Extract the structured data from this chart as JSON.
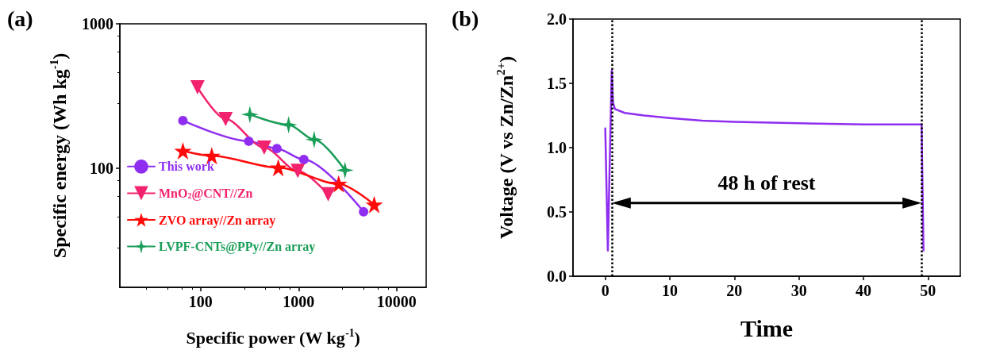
{
  "chart_data": [
    {
      "type": "line",
      "title": "(a)",
      "xlabel": "Specific power (W kg$^{-1}$)",
      "ylabel": "Specific energy (Wh kg$^{-1}$)",
      "log": "xy",
      "xlim": [
        15,
        20000
      ],
      "ylim": [
        15,
        1000
      ],
      "xticks": [
        100,
        1000,
        10000
      ],
      "yticks": [
        100,
        1000
      ],
      "grid": false,
      "legend": "left",
      "series": [
        {
          "name": "This work",
          "color": "#8f2ef0",
          "marker": "circle",
          "x": [
            66,
            310,
            600,
            1130,
            4600
          ],
          "values": [
            214,
            154,
            137,
            115,
            50
          ]
        },
        {
          "name": "MnO$_{2}$@CNT//Zn",
          "color": "#f2226e",
          "marker": "triangle",
          "x": [
            93,
            180,
            445,
            980,
            2000
          ],
          "values": [
            363,
            219,
            139,
            96,
            66
          ]
        },
        {
          "name": "ZVO array//Zn array",
          "color": "#ff0a0a",
          "marker": "star",
          "x": [
            66,
            130,
            620,
            2560,
            5900
          ],
          "values": [
            132,
            122,
            101,
            78,
            56
          ]
        },
        {
          "name": "LVPF-CNTs@PPy//Zn array",
          "color": "#1a9e58",
          "marker": "cross",
          "x": [
            318,
            790,
            1440,
            2970
          ],
          "values": [
            236,
            200,
            158,
            97
          ]
        }
      ]
    },
    {
      "type": "line",
      "title": "(b)",
      "xlabel": "Time",
      "ylabel": "Voltage (V vs Zn/Zn$^{2+}$)",
      "xlim": [
        -5,
        55
      ],
      "ylim": [
        0,
        2
      ],
      "xticks": [
        0,
        10,
        20,
        30,
        40,
        50
      ],
      "yticks": [
        {
          "value": 0,
          "label": "0.0"
        },
        0.5,
        {
          "value": 1,
          "label": "1.0"
        },
        1.5,
        {
          "value": 2,
          "label": "2.0"
        }
      ],
      "grid": false,
      "marker": "none",
      "series": [
        {
          "color": "#8f2ef0",
          "x": [
            0,
            0.4,
            1.0,
            1.2,
            1.5,
            3,
            6,
            10,
            15,
            20,
            30,
            40,
            49,
            49.3
          ],
          "values": [
            1.15,
            0.2,
            1.6,
            1.35,
            1.3,
            1.27,
            1.25,
            1.23,
            1.21,
            1.2,
            1.19,
            1.18,
            1.18,
            0.2
          ]
        }
      ],
      "ref_lines": [
        {
          "axis": "x",
          "value": 1,
          "color": "#000000",
          "line_style": "dotted"
        },
        {
          "axis": "x",
          "value": 49,
          "color": "#000000",
          "line_style": "dotted"
        }
      ],
      "annotations": [
        "48 h of rest"
      ]
    }
  ]
}
